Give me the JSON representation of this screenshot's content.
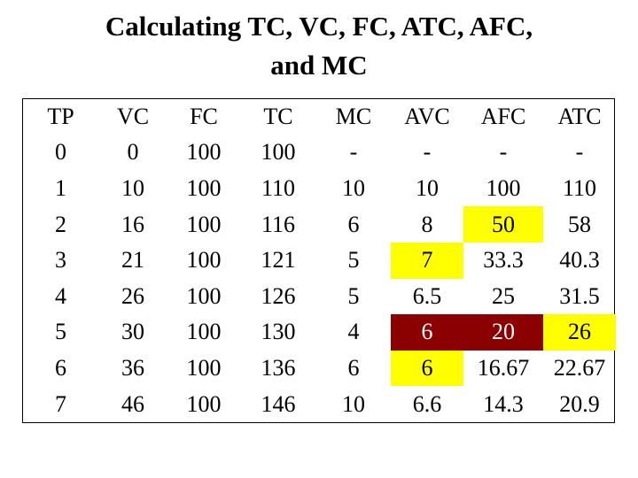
{
  "title_line1": "Calculating TC, VC, FC, ATC, AFC,",
  "title_line2": "and MC",
  "headers": [
    "TP",
    "VC",
    "FC",
    "TC",
    "MC",
    "AVC",
    "AFC",
    "ATC"
  ],
  "rows": [
    [
      "0",
      "0",
      "100",
      "100",
      "-",
      "-",
      "-",
      "-"
    ],
    [
      "1",
      "10",
      "100",
      "110",
      "10",
      "10",
      "100",
      "110"
    ],
    [
      "2",
      "16",
      "100",
      "116",
      "6",
      "8",
      "50",
      "58"
    ],
    [
      "3",
      "21",
      "100",
      "121",
      "5",
      "7",
      "33.3",
      "40.3"
    ],
    [
      "4",
      "26",
      "100",
      "126",
      "5",
      "6.5",
      "25",
      "31.5"
    ],
    [
      "5",
      "30",
      "100",
      "130",
      "4",
      "6",
      "20",
      "26"
    ],
    [
      "6",
      "36",
      "100",
      "136",
      "6",
      "6",
      "16.67",
      "22.67"
    ],
    [
      "7",
      "46",
      "100",
      "146",
      "10",
      "6.6",
      "14.3",
      "20.9"
    ]
  ],
  "highlight_colors": {
    "yellow": "#ffff00",
    "dark_red": "#8b0000",
    "white_text": "#ffffff",
    "yellow_text": "#ffff00"
  }
}
